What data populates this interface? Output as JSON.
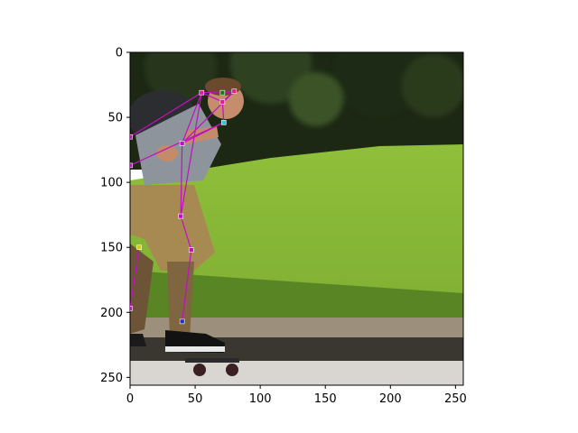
{
  "x_ticks": [
    {
      "value": 0,
      "label": "0"
    },
    {
      "value": 50,
      "label": "50"
    },
    {
      "value": 100,
      "label": "100"
    },
    {
      "value": 150,
      "label": "150"
    },
    {
      "value": 200,
      "label": "200"
    },
    {
      "value": 250,
      "label": "250"
    }
  ],
  "y_ticks": [
    {
      "value": 0,
      "label": "0"
    },
    {
      "value": 50,
      "label": "50"
    },
    {
      "value": 100,
      "label": "100"
    },
    {
      "value": 150,
      "label": "150"
    },
    {
      "value": 200,
      "label": "200"
    },
    {
      "value": 250,
      "label": "250"
    }
  ],
  "image_extent": {
    "x": [
      0,
      256
    ],
    "y": [
      256,
      0
    ]
  },
  "pose": {
    "skeleton_color": "#c010c0",
    "keypoints": [
      {
        "x": 55,
        "y": 31,
        "color": "#e0208a"
      },
      {
        "x": 71,
        "y": 31,
        "color": "#1a7a1a"
      },
      {
        "x": 80,
        "y": 30,
        "color": "#e0208a"
      },
      {
        "x": 71,
        "y": 38,
        "color": "#e0208a"
      },
      {
        "x": 72,
        "y": 54,
        "color": "#20d0d0"
      },
      {
        "x": 40,
        "y": 70,
        "color": "#c010c0"
      },
      {
        "x": 39,
        "y": 126,
        "color": "#c010c0"
      },
      {
        "x": 47,
        "y": 152,
        "color": "#c010c0"
      },
      {
        "x": 40,
        "y": 207,
        "color": "#2030c0"
      },
      {
        "x": 7,
        "y": 150,
        "color": "#d0d010"
      },
      {
        "x": 0,
        "y": 197,
        "color": "#c010c0"
      },
      {
        "x": 0,
        "y": 65,
        "color": "#c010c0"
      },
      {
        "x": 0,
        "y": 87,
        "color": "#c010c0"
      }
    ],
    "bones": [
      [
        0,
        2
      ],
      [
        1,
        2
      ],
      [
        2,
        3
      ],
      [
        3,
        0
      ],
      [
        0,
        5
      ],
      [
        2,
        5
      ],
      [
        4,
        5
      ],
      [
        3,
        4
      ],
      [
        5,
        6
      ],
      [
        0,
        6
      ],
      [
        6,
        7
      ],
      [
        7,
        8
      ],
      [
        9,
        10
      ],
      [
        11,
        0
      ],
      [
        12,
        4
      ]
    ]
  }
}
